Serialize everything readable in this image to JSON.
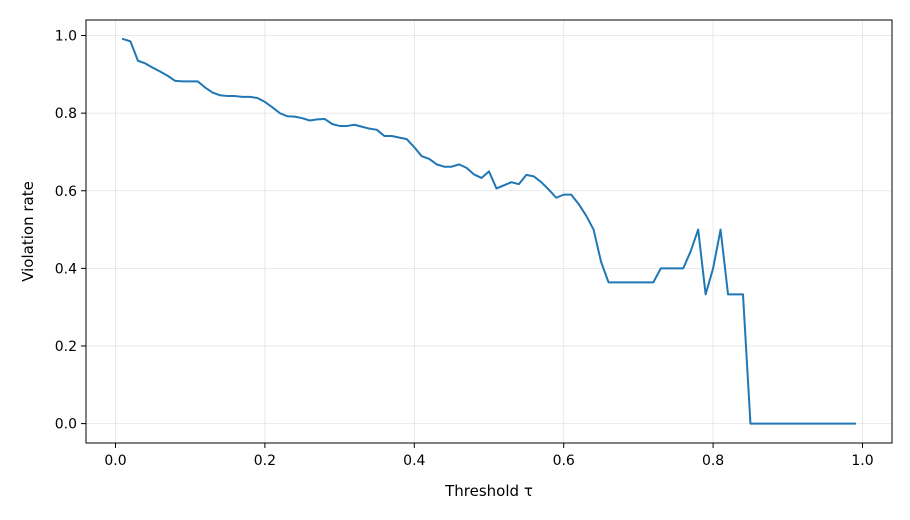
{
  "chart_data": {
    "type": "line",
    "title": "",
    "xlabel": "Threshold τ",
    "ylabel": "Violation rate",
    "xlim": [
      -0.0395,
      1.0395
    ],
    "ylim": [
      -0.05,
      1.04
    ],
    "xticks": [
      0.0,
      0.2,
      0.4,
      0.6,
      0.8,
      1.0
    ],
    "xtick_labels": [
      "0.0",
      "0.2",
      "0.4",
      "0.6",
      "0.8",
      "1.0"
    ],
    "yticks": [
      0.0,
      0.2,
      0.4,
      0.6,
      0.8,
      1.0
    ],
    "ytick_labels": [
      "0.0",
      "0.2",
      "0.4",
      "0.6",
      "0.8",
      "1.0"
    ],
    "grid": true,
    "legend": "none",
    "line_color": "#1f77b4",
    "series": [
      {
        "x": [
          0.01,
          0.02,
          0.03,
          0.04,
          0.05,
          0.06,
          0.07,
          0.08,
          0.09,
          0.1,
          0.11,
          0.12,
          0.13,
          0.14,
          0.15,
          0.16,
          0.17,
          0.18,
          0.19,
          0.2,
          0.21,
          0.22,
          0.23,
          0.24,
          0.25,
          0.26,
          0.27,
          0.28,
          0.29,
          0.3,
          0.31,
          0.32,
          0.33,
          0.34,
          0.35,
          0.36,
          0.37,
          0.38,
          0.39,
          0.4,
          0.41,
          0.42,
          0.43,
          0.44,
          0.45,
          0.46,
          0.47,
          0.48,
          0.49,
          0.5,
          0.51,
          0.52,
          0.53,
          0.54,
          0.55,
          0.56,
          0.57,
          0.58,
          0.59,
          0.6,
          0.61,
          0.62,
          0.63,
          0.64,
          0.65,
          0.66,
          0.67,
          0.68,
          0.69,
          0.7,
          0.71,
          0.72,
          0.73,
          0.74,
          0.75,
          0.76,
          0.77,
          0.78,
          0.79,
          0.8,
          0.81,
          0.82,
          0.83,
          0.84,
          0.85,
          0.86,
          0.87,
          0.88,
          0.89,
          0.9,
          0.91,
          0.92,
          0.93,
          0.94,
          0.95,
          0.96,
          0.97,
          0.98,
          0.99
        ],
        "values": [
          0.991,
          0.985,
          0.935,
          0.928,
          0.917,
          0.907,
          0.896,
          0.883,
          0.882,
          0.882,
          0.882,
          0.866,
          0.853,
          0.846,
          0.844,
          0.844,
          0.842,
          0.842,
          0.839,
          0.829,
          0.815,
          0.8,
          0.792,
          0.791,
          0.787,
          0.781,
          0.784,
          0.785,
          0.772,
          0.767,
          0.767,
          0.77,
          0.765,
          0.76,
          0.757,
          0.741,
          0.741,
          0.737,
          0.733,
          0.712,
          0.689,
          0.682,
          0.668,
          0.662,
          0.662,
          0.668,
          0.659,
          0.642,
          0.633,
          0.65,
          0.606,
          0.614,
          0.622,
          0.617,
          0.641,
          0.637,
          0.622,
          0.603,
          0.582,
          0.59,
          0.59,
          0.566,
          0.536,
          0.5,
          0.417,
          0.364,
          0.364,
          0.364,
          0.364,
          0.364,
          0.364,
          0.364,
          0.4,
          0.4,
          0.4,
          0.4,
          0.444,
          0.5,
          0.333,
          0.4,
          0.5,
          0.333,
          0.333,
          0.333,
          0.0,
          0.0,
          0.0,
          0.0,
          0.0,
          0.0,
          0.0,
          0.0,
          0.0,
          0.0,
          0.0,
          0.0,
          0.0,
          0.0,
          0.0
        ]
      }
    ]
  }
}
